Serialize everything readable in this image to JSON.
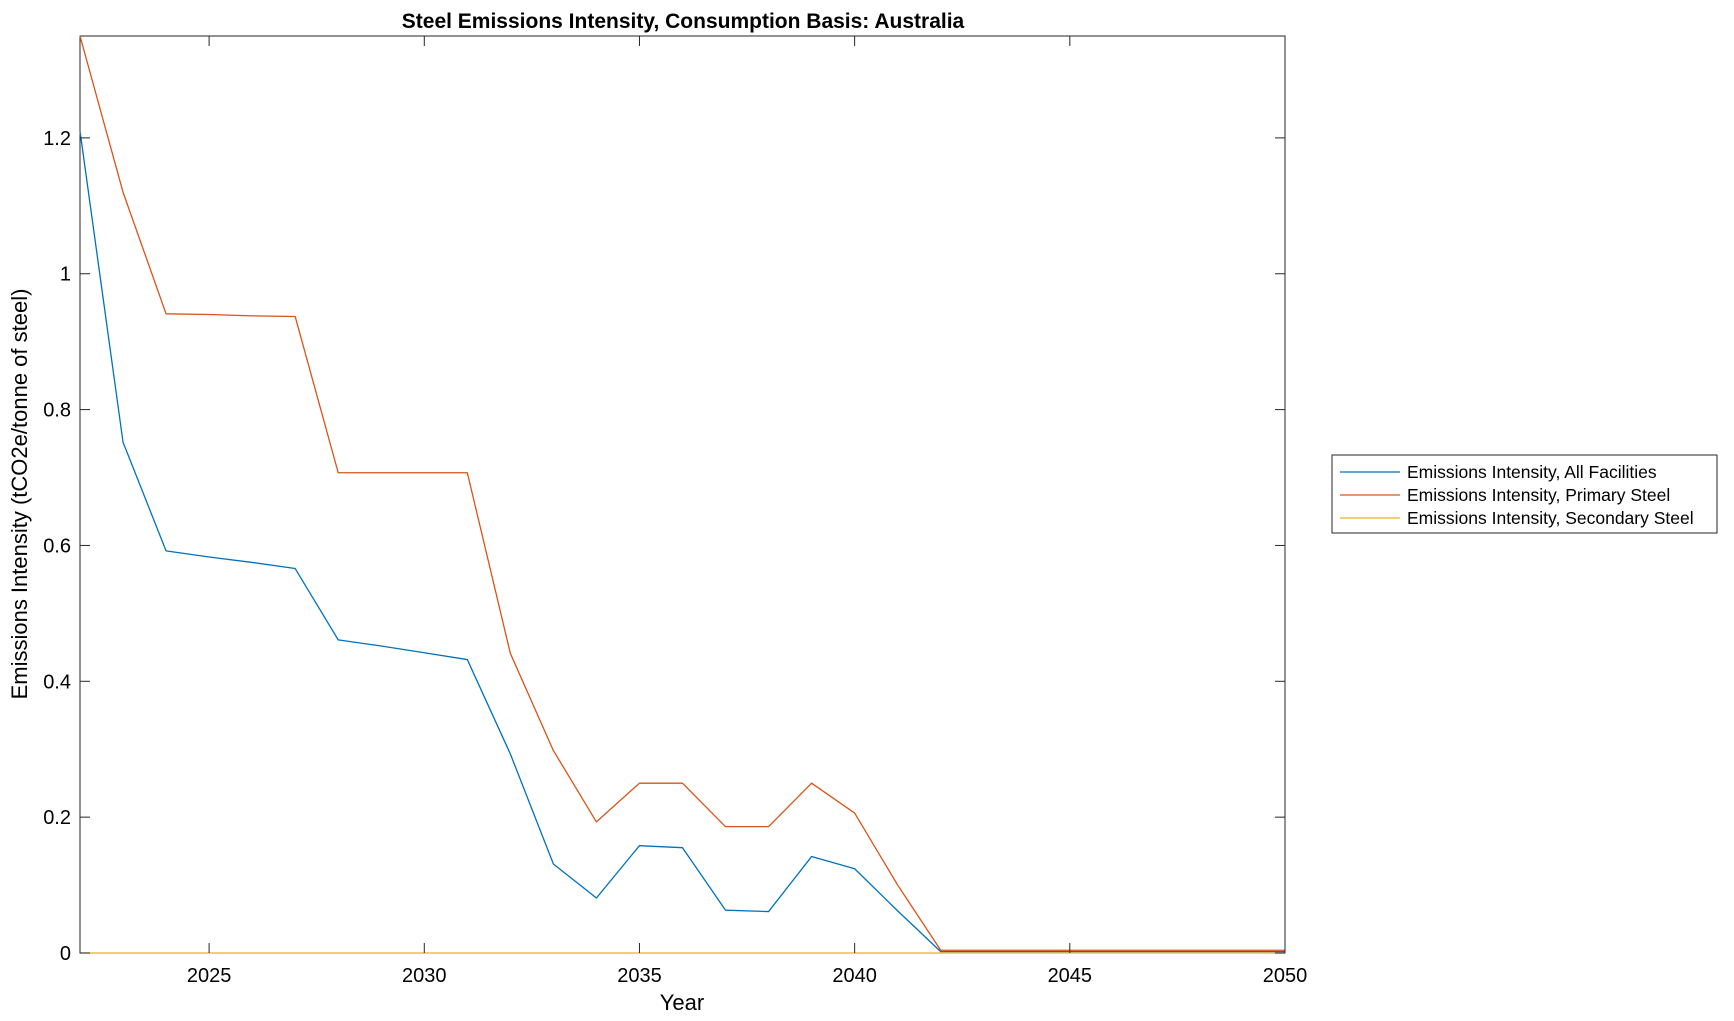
{
  "chart_data": {
    "type": "line",
    "title": "Steel Emissions Intensity, Consumption Basis: Australia",
    "xlabel": "Year",
    "ylabel": "Emissions Intensity (tCO2e/tonne of steel)",
    "xlim": [
      2022,
      2050
    ],
    "ylim": [
      0,
      1.35
    ],
    "xticks": [
      2025,
      2030,
      2035,
      2040,
      2045,
      2050
    ],
    "yticks": [
      0,
      0.2,
      0.4,
      0.6,
      0.8,
      1,
      1.2
    ],
    "ytick_labels": [
      "0",
      "0.2",
      "0.4",
      "0.6",
      "0.8",
      "1",
      "1.2"
    ],
    "grid": false,
    "legend_position": "right (outside)",
    "x": [
      2022,
      2023,
      2024,
      2025,
      2026,
      2027,
      2028,
      2029,
      2030,
      2031,
      2032,
      2033,
      2034,
      2035,
      2036,
      2037,
      2038,
      2039,
      2040,
      2041,
      2042,
      2043,
      2044,
      2045,
      2046,
      2047,
      2048,
      2049,
      2050
    ],
    "series": [
      {
        "name": "Emissions Intensity, All Facilities",
        "color": "#0072BD",
        "values": [
          1.21,
          0.752,
          0.592,
          0.583,
          0.575,
          0.566,
          0.461,
          0.452,
          0.442,
          0.432,
          0.293,
          0.131,
          0.081,
          0.158,
          0.155,
          0.063,
          0.061,
          0.142,
          0.124,
          0.062,
          0.002,
          0.002,
          0.002,
          0.002,
          0.002,
          0.002,
          0.002,
          0.002,
          0.002
        ]
      },
      {
        "name": "Emissions Intensity, Primary Steel",
        "color": "#D95319",
        "values": [
          1.35,
          1.12,
          0.941,
          0.94,
          0.938,
          0.937,
          0.707,
          0.707,
          0.707,
          0.707,
          0.441,
          0.298,
          0.193,
          0.25,
          0.25,
          0.186,
          0.186,
          0.25,
          0.206,
          0.1,
          0.004,
          0.004,
          0.004,
          0.004,
          0.004,
          0.004,
          0.004,
          0.004,
          0.004
        ]
      },
      {
        "name": "Emissions Intensity, Secondary Steel",
        "color": "#EDB120",
        "values": [
          0,
          0,
          0,
          0,
          0,
          0,
          0,
          0,
          0,
          0,
          0,
          0,
          0,
          0,
          0,
          0,
          0,
          0,
          0,
          0,
          0,
          0,
          0,
          0,
          0,
          0,
          0,
          0,
          0
        ]
      }
    ]
  }
}
